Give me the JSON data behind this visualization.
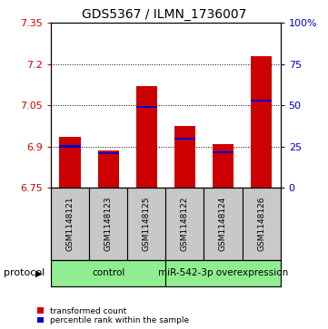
{
  "title": "GDS5367 / ILMN_1736007",
  "samples": [
    "GSM1148121",
    "GSM1148123",
    "GSM1148125",
    "GSM1148122",
    "GSM1148124",
    "GSM1148126"
  ],
  "group_labels": [
    "control",
    "miR-542-3p overexpression"
  ],
  "bar_bottoms": 6.75,
  "bar_tops": [
    6.935,
    6.885,
    7.12,
    6.975,
    6.91,
    7.23
  ],
  "percentile_vals": [
    6.9,
    6.875,
    7.045,
    6.928,
    6.878,
    7.068
  ],
  "ylim_left": [
    6.75,
    7.35
  ],
  "yticks_left": [
    6.75,
    6.9,
    7.05,
    7.2,
    7.35
  ],
  "ytick_labels_left": [
    "6.75",
    "6.9",
    "7.05",
    "7.2",
    "7.35"
  ],
  "yticks_right": [
    0,
    25,
    50,
    75,
    100
  ],
  "ytick_labels_right": [
    "0",
    "25",
    "50",
    "75",
    "100%"
  ],
  "hlines": [
    6.9,
    7.05,
    7.2
  ],
  "bar_color": "#CC0000",
  "percentile_color": "#0000CC",
  "bar_width": 0.55,
  "left_tick_color": "#CC0000",
  "right_tick_color": "#0000CC",
  "sample_bg": "#C8C8C8",
  "control_bg": "#90EE90",
  "overexpr_bg": "#90EE90",
  "legend_items": [
    "transformed count",
    "percentile rank within the sample"
  ],
  "protocol_label": "protocol",
  "title_fontsize": 10,
  "tick_fontsize": 8,
  "sample_fontsize": 6.5,
  "group_fontsize": 7.5
}
